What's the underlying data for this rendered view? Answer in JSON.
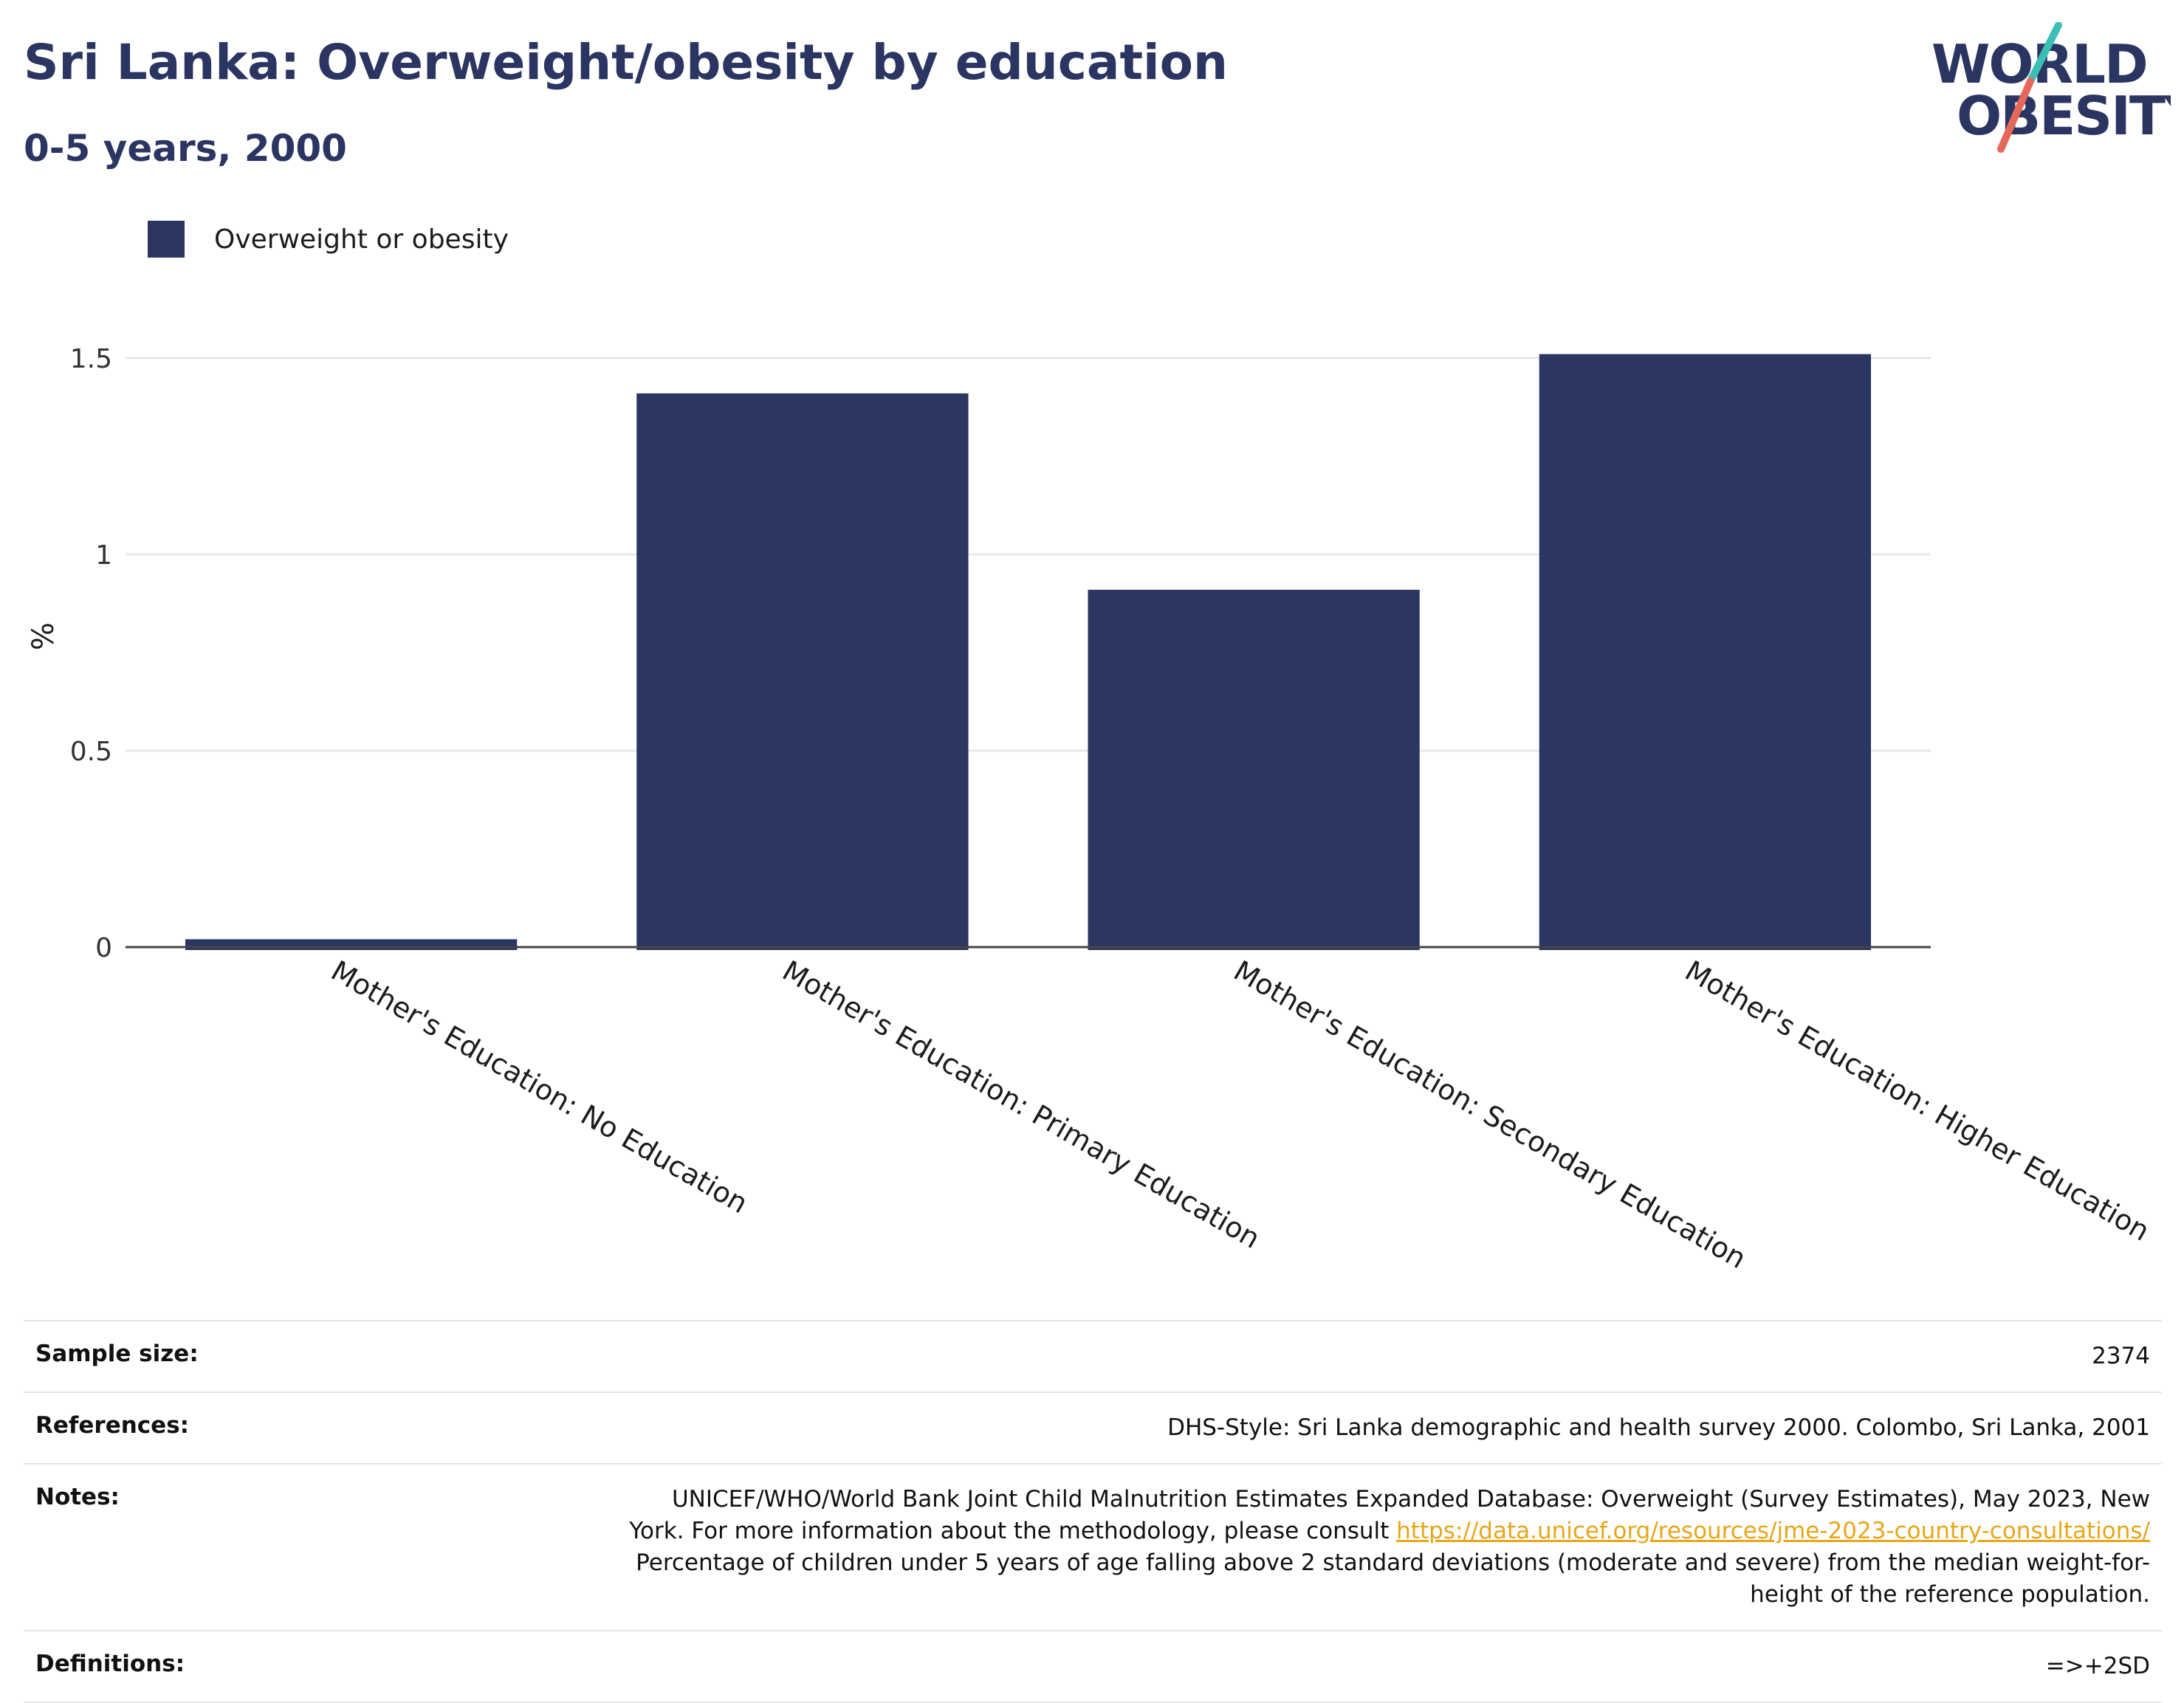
{
  "header": {
    "title": "Sri Lanka: Overweight/obesity by education",
    "subtitle": "0-5 years, 2000"
  },
  "logo": {
    "line1": "WORLD",
    "line2": "OBESITY",
    "colors": {
      "text": "#2b3561",
      "slash_teal": "#3bbfb5",
      "slash_red": "#e5685a"
    }
  },
  "legend": {
    "label": "Overweight or obesity",
    "color": "#2b3662"
  },
  "chart_data": {
    "type": "bar",
    "categories": [
      "Mother's Education: No Education",
      "Mother's Education: Primary Education",
      "Mother's Education: Secondary Education",
      "Mother's Education: Higher Education"
    ],
    "series": [
      {
        "name": "Overweight or obesity",
        "values": [
          0.02,
          1.41,
          0.91,
          1.51
        ],
        "color": "#2b3662"
      }
    ],
    "ylabel": "%",
    "ylim": [
      0,
      1.5
    ],
    "yticks": [
      0,
      0.5,
      1,
      1.5
    ],
    "ytick_labels": [
      "0",
      "0.5",
      "1",
      "1.5"
    ],
    "grid": true,
    "legend_position": "top-left"
  },
  "info": {
    "sample_size": {
      "label": "Sample size:",
      "value": "2374"
    },
    "references": {
      "label": "References:",
      "value": "DHS-Style: Sri Lanka demographic and health survey 2000. Colombo, Sri Lanka, 2001"
    },
    "notes": {
      "label": "Notes:",
      "text1": "UNICEF/WHO/World Bank Joint Child Malnutrition Estimates Expanded Database: Overweight (Survey Estimates), May 2023, New York. For more information about the methodology, please consult",
      "link": "https://data.unicef.org/resources/jme-2023-country-consultations/",
      "text2": "Percentage of children under 5 years of age falling above 2 standard deviations (moderate and severe) from the median weight-for-height of the reference population."
    },
    "definitions": {
      "label": "Definitions:",
      "value": "=>+2SD"
    }
  }
}
